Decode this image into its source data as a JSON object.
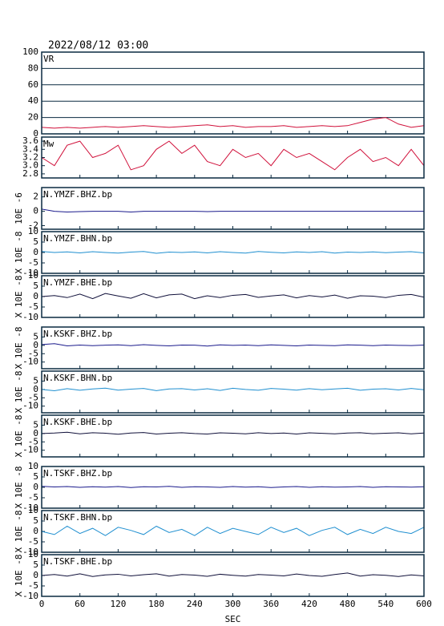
{
  "chart_data": [
    {
      "type": "line",
      "title": "2022/08/12 03:00",
      "panel_label": "VR",
      "xlim": [
        0,
        600
      ],
      "xticks": [
        0,
        60,
        120,
        180,
        240,
        300,
        360,
        420,
        480,
        540,
        600
      ],
      "ylim": [
        0,
        100
      ],
      "yticks": [
        0,
        20,
        40,
        60,
        80,
        100
      ],
      "grid": true,
      "x": [
        0,
        20,
        40,
        60,
        80,
        100,
        120,
        140,
        160,
        180,
        200,
        220,
        240,
        260,
        280,
        300,
        320,
        340,
        360,
        380,
        400,
        420,
        440,
        460,
        480,
        500,
        520,
        540,
        560,
        580,
        600
      ],
      "series": [
        {
          "color": "#d0103a",
          "values": [
            8,
            7,
            8,
            7,
            8,
            9,
            8,
            9,
            10,
            9,
            8,
            9,
            10,
            11,
            9,
            10,
            8,
            9,
            9,
            10,
            8,
            9,
            10,
            9,
            10,
            14,
            18,
            20,
            12,
            8,
            10
          ]
        }
      ]
    },
    {
      "type": "line",
      "panel_label": "Mw",
      "xlim": [
        0,
        600
      ],
      "xticks": [
        0,
        60,
        120,
        180,
        240,
        300,
        360,
        420,
        480,
        540,
        600
      ],
      "ylim": [
        2.7,
        3.7
      ],
      "yticks": [
        {
          "value": 2.8,
          "label": "2.8"
        },
        {
          "value": 3,
          "label": "3.0"
        },
        {
          "value": 3.2,
          "label": "3.2"
        },
        {
          "value": 3.4,
          "label": "3.4"
        },
        {
          "value": 3.6,
          "label": "3.6"
        }
      ],
      "grid": false,
      "x": [
        0,
        20,
        40,
        60,
        80,
        100,
        120,
        140,
        160,
        180,
        200,
        220,
        240,
        260,
        280,
        300,
        320,
        340,
        360,
        380,
        400,
        420,
        440,
        460,
        480,
        500,
        520,
        540,
        560,
        580,
        600
      ],
      "series": [
        {
          "color": "#d0103a",
          "values": [
            3.2,
            3.0,
            3.5,
            3.6,
            3.2,
            3.3,
            3.5,
            2.9,
            3.0,
            3.4,
            3.6,
            3.3,
            3.5,
            3.1,
            3.0,
            3.4,
            3.2,
            3.3,
            3.0,
            3.4,
            3.2,
            3.3,
            3.1,
            2.9,
            3.2,
            3.4,
            3.1,
            3.2,
            3.0,
            3.4,
            3.0
          ]
        }
      ]
    },
    {
      "type": "line",
      "panel_label": "N.YMZF.BHZ.bp",
      "ylabel": "10E -6",
      "xlim": [
        0,
        600
      ],
      "xticks": [
        0,
        60,
        120,
        180,
        240,
        300,
        360,
        420,
        480,
        540,
        600
      ],
      "ylim": [
        -2.5,
        3.3
      ],
      "yticks": [
        -2,
        0,
        2
      ],
      "grid": false,
      "x": [
        0,
        20,
        40,
        60,
        80,
        100,
        120,
        140,
        160,
        180,
        200,
        220,
        240,
        260,
        280,
        300,
        320,
        340,
        360,
        380,
        400,
        420,
        440,
        460,
        480,
        500,
        520,
        540,
        560,
        580,
        600
      ],
      "series": [
        {
          "color": "#1a1a8c",
          "values": [
            0.3,
            0,
            -0.1,
            -0.05,
            0,
            0,
            0,
            -0.1,
            0,
            0,
            0,
            0,
            0,
            -0.05,
            0,
            0,
            0,
            0,
            0,
            0,
            0,
            0,
            0,
            0,
            0,
            0,
            0,
            0,
            0,
            0,
            0
          ]
        }
      ]
    },
    {
      "type": "line",
      "panel_label": "N.YMZF.BHN.bp",
      "ylabel": "X 10E -8",
      "xlim": [
        0,
        600
      ],
      "xticks": [
        0,
        60,
        120,
        180,
        240,
        300,
        360,
        420,
        480,
        540,
        600
      ],
      "ylim": [
        -10,
        10
      ],
      "yticks": [
        -10,
        -5,
        0,
        5,
        10
      ],
      "grid": false,
      "x": [
        0,
        20,
        40,
        60,
        80,
        100,
        120,
        140,
        160,
        180,
        200,
        220,
        240,
        260,
        280,
        300,
        320,
        340,
        360,
        380,
        400,
        420,
        440,
        460,
        480,
        500,
        520,
        540,
        560,
        580,
        600
      ],
      "series": [
        {
          "color": "#1f8fd0",
          "values": [
            0.5,
            0,
            0.3,
            -0.2,
            0.4,
            0,
            -0.3,
            0.2,
            0.5,
            -0.4,
            0.2,
            0,
            0.3,
            -0.2,
            0.4,
            0,
            -0.3,
            0.5,
            0.1,
            -0.2,
            0.3,
            0,
            0.4,
            -0.3,
            0.2,
            0,
            0.3,
            -0.1,
            0.2,
            0.4,
            -0.2
          ]
        }
      ]
    },
    {
      "type": "line",
      "panel_label": "N.YMZF.BHE.bp",
      "ylabel": "X 10E -8",
      "xlim": [
        0,
        600
      ],
      "xticks": [
        0,
        60,
        120,
        180,
        240,
        300,
        360,
        420,
        480,
        540,
        600
      ],
      "ylim": [
        -10,
        10
      ],
      "yticks": [
        -10,
        -5,
        0,
        5,
        10
      ],
      "grid": false,
      "x": [
        0,
        20,
        40,
        60,
        80,
        100,
        120,
        140,
        160,
        180,
        200,
        220,
        240,
        260,
        280,
        300,
        320,
        340,
        360,
        380,
        400,
        420,
        440,
        460,
        480,
        500,
        520,
        540,
        560,
        580,
        600
      ],
      "series": [
        {
          "color": "#10103a",
          "values": [
            0,
            0.5,
            -0.5,
            1.2,
            -1,
            1.5,
            0.3,
            -0.8,
            1.4,
            -0.6,
            0.8,
            1.2,
            -1,
            0.4,
            -0.5,
            0.6,
            1,
            -0.4,
            0.3,
            0.8,
            -0.6,
            0.5,
            -0.2,
            0.7,
            -0.8,
            0.4,
            0.2,
            -0.5,
            0.6,
            1,
            -0.3
          ]
        }
      ]
    },
    {
      "type": "line",
      "panel_label": "N.KSKF.BHZ.bp",
      "ylabel": "X 10E -8",
      "xlim": [
        0,
        600
      ],
      "xticks": [
        0,
        60,
        120,
        180,
        240,
        300,
        360,
        420,
        480,
        540,
        600
      ],
      "ylim": [
        -14,
        11
      ],
      "yticks": [
        -10,
        -5,
        0,
        5
      ],
      "grid": false,
      "x": [
        0,
        20,
        40,
        60,
        80,
        100,
        120,
        140,
        160,
        180,
        200,
        220,
        240,
        260,
        280,
        300,
        320,
        340,
        360,
        380,
        400,
        420,
        440,
        460,
        480,
        500,
        520,
        540,
        560,
        580,
        600
      ],
      "series": [
        {
          "color": "#1a1a8c",
          "values": [
            0.5,
            1,
            -0.3,
            0.2,
            -0.2,
            0.1,
            0.3,
            -0.2,
            0.4,
            0,
            -0.3,
            0.2,
            0.1,
            -0.4,
            0.3,
            0,
            0.2,
            -0.2,
            0.3,
            0,
            -0.3,
            0.2,
            0,
            -0.2,
            0.3,
            0.1,
            -0.2,
            0.2,
            0,
            -0.1,
            0.2
          ]
        }
      ]
    },
    {
      "type": "line",
      "panel_label": "N.KSKF.BHN.bp",
      "ylabel": "X 10E -8",
      "xlim": [
        0,
        600
      ],
      "xticks": [
        0,
        60,
        120,
        180,
        240,
        300,
        360,
        420,
        480,
        540,
        600
      ],
      "ylim": [
        -14,
        11
      ],
      "yticks": [
        -10,
        -5,
        0,
        5
      ],
      "grid": false,
      "x": [
        0,
        20,
        40,
        60,
        80,
        100,
        120,
        140,
        160,
        180,
        200,
        220,
        240,
        260,
        280,
        300,
        320,
        340,
        360,
        380,
        400,
        420,
        440,
        460,
        480,
        500,
        520,
        540,
        560,
        580,
        600
      ],
      "series": [
        {
          "color": "#1f8fd0",
          "values": [
            0,
            -0.8,
            0.5,
            -0.5,
            0.3,
            0.8,
            -0.4,
            0.2,
            0.6,
            -0.7,
            0.3,
            0.5,
            -0.3,
            0.4,
            -0.6,
            0.7,
            0,
            -0.5,
            0.6,
            0.2,
            -0.4,
            0.5,
            -0.2,
            0.3,
            0.7,
            -0.5,
            0.2,
            0.4,
            -0.3,
            0.6,
            -0.2
          ]
        }
      ]
    },
    {
      "type": "line",
      "panel_label": "N.KSKF.BHE.bp",
      "ylabel": "X 10E -8",
      "xlim": [
        0,
        600
      ],
      "xticks": [
        0,
        60,
        120,
        180,
        240,
        300,
        360,
        420,
        480,
        540,
        600
      ],
      "ylim": [
        -14,
        11
      ],
      "yticks": [
        -10,
        -5,
        0,
        5
      ],
      "grid": false,
      "x": [
        0,
        20,
        40,
        60,
        80,
        100,
        120,
        140,
        160,
        180,
        200,
        220,
        240,
        260,
        280,
        300,
        320,
        340,
        360,
        380,
        400,
        420,
        440,
        460,
        480,
        500,
        520,
        540,
        560,
        580,
        600
      ],
      "series": [
        {
          "color": "#10103a",
          "values": [
            0,
            0.3,
            0.8,
            -0.2,
            0.5,
            0.2,
            -0.4,
            0.3,
            0.6,
            -0.3,
            0.2,
            0.5,
            0,
            -0.3,
            0.4,
            0.2,
            -0.2,
            0.5,
            0,
            0.3,
            -0.3,
            0.4,
            0.1,
            -0.2,
            0.3,
            0.5,
            -0.1,
            0.2,
            0.4,
            -0.2,
            0.3
          ]
        }
      ]
    },
    {
      "type": "line",
      "panel_label": "N.TSKF.BHZ.bp",
      "ylabel": "X 10E -8",
      "xlim": [
        0,
        600
      ],
      "xticks": [
        0,
        60,
        120,
        180,
        240,
        300,
        360,
        420,
        480,
        540,
        600
      ],
      "ylim": [
        -10,
        10
      ],
      "yticks": [
        -10,
        -5,
        0,
        5,
        10
      ],
      "grid": false,
      "x": [
        0,
        20,
        40,
        60,
        80,
        100,
        120,
        140,
        160,
        180,
        200,
        220,
        240,
        260,
        280,
        300,
        320,
        340,
        360,
        380,
        400,
        420,
        440,
        460,
        480,
        500,
        520,
        540,
        560,
        580,
        600
      ],
      "series": [
        {
          "color": "#1a1a8c",
          "values": [
            0.5,
            0.2,
            0.4,
            0,
            0.3,
            0.1,
            0.4,
            -0.1,
            0.3,
            0.2,
            0.5,
            0,
            0.3,
            0.2,
            0,
            0.4,
            0.1,
            0.3,
            -0.1,
            0.2,
            0.4,
            0,
            0.3,
            0.1,
            0.2,
            0.4,
            0,
            0.3,
            0.2,
            0.1,
            0.3
          ]
        }
      ]
    },
    {
      "type": "line",
      "panel_label": "N.TSKF.BHN.bp",
      "ylabel": "X 10E -8",
      "xlim": [
        0,
        600
      ],
      "xticks": [
        0,
        60,
        120,
        180,
        240,
        300,
        360,
        420,
        480,
        540,
        600
      ],
      "ylim": [
        -10,
        10
      ],
      "yticks": [
        -10,
        -5,
        0,
        5,
        10
      ],
      "grid": false,
      "x": [
        0,
        20,
        40,
        60,
        80,
        100,
        120,
        140,
        160,
        180,
        200,
        220,
        240,
        260,
        280,
        300,
        320,
        340,
        360,
        380,
        400,
        420,
        440,
        460,
        480,
        500,
        520,
        540,
        560,
        580,
        600
      ],
      "series": [
        {
          "color": "#1f8fd0",
          "values": [
            0,
            -1.5,
            2.5,
            -1,
            1.5,
            -2,
            2,
            0.5,
            -1.5,
            2.5,
            -0.5,
            1,
            -2,
            2,
            -1,
            1.5,
            0,
            -1.5,
            2,
            -0.5,
            1.5,
            -2,
            0.5,
            2,
            -1.5,
            1,
            -1,
            2,
            0,
            -1,
            2
          ]
        }
      ]
    },
    {
      "type": "line",
      "panel_label": "N.TSKF.BHE.bp",
      "ylabel": "X 10E -8",
      "xlabel": "SEC",
      "xlim": [
        0,
        600
      ],
      "xticks": [
        0,
        60,
        120,
        180,
        240,
        300,
        360,
        420,
        480,
        540,
        600
      ],
      "ylim": [
        -10,
        10
      ],
      "yticks": [
        -10,
        -5,
        0,
        5,
        10
      ],
      "grid": false,
      "x": [
        0,
        20,
        40,
        60,
        80,
        100,
        120,
        140,
        160,
        180,
        200,
        220,
        240,
        260,
        280,
        300,
        320,
        340,
        360,
        380,
        400,
        420,
        440,
        460,
        480,
        500,
        520,
        540,
        560,
        580,
        600
      ],
      "series": [
        {
          "color": "#10103a",
          "values": [
            0,
            0.5,
            -0.3,
            0.8,
            -0.5,
            0.3,
            0.6,
            -0.2,
            0.4,
            0.8,
            -0.3,
            0.5,
            0.2,
            -0.4,
            0.6,
            0.1,
            -0.3,
            0.5,
            0.2,
            -0.2,
            0.7,
            0,
            -0.4,
            0.5,
            1.2,
            -0.3,
            0.4,
            0.1,
            -0.5,
            0.3,
            -0.2
          ]
        }
      ]
    }
  ]
}
